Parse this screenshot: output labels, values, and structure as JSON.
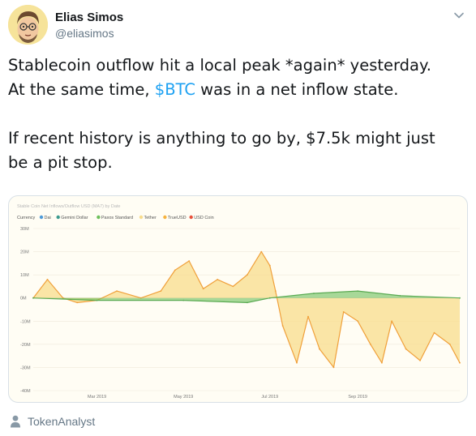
{
  "author": {
    "display_name": "Elias Simos",
    "handle": "@eliasimos"
  },
  "tweet": {
    "line1_a": "Stablecoin outflow hit a local peak *again* yesterday.",
    "line2_a": "At the same time, ",
    "line2_cashtag": "$BTC",
    "line2_b": " was in a net inflow state.",
    "line3": "If recent history is anything to go by, $7.5k might just",
    "line4": "be a pit stop."
  },
  "media_attribution": "TokenAnalyst",
  "chart_data": {
    "type": "area",
    "title": "Stable Coin Net Inflows/Outflow USD (MA7) by Date",
    "legend_title": "Currency",
    "legend_placement": "top-left",
    "grid": true,
    "ylim": [
      -40,
      30
    ],
    "y_ticks": [
      "30M",
      "20M",
      "10M",
      "0M",
      "-10M",
      "-20M",
      "-30M",
      "-40M"
    ],
    "x_ticks": [
      "Mar 2019",
      "May 2019",
      "Jul 2019",
      "Sep 2019"
    ],
    "colors": {
      "Dai": "#4e9ad8",
      "Gemini Dollar": "#3b9a8e",
      "Paxos Standard": "#6cbf5a",
      "Tether": "#f8dc8c",
      "TrueUSD": "#f6b23e",
      "USD Coin": "#e8503a"
    },
    "series": [
      {
        "name": "Tether",
        "x": [
          "2019-01-15",
          "2019-01-25",
          "2019-02-05",
          "2019-02-15",
          "2019-03-01",
          "2019-03-15",
          "2019-04-01",
          "2019-04-15",
          "2019-04-25",
          "2019-05-05",
          "2019-05-15",
          "2019-05-25",
          "2019-06-05",
          "2019-06-15",
          "2019-06-25",
          "2019-07-01",
          "2019-07-05",
          "2019-07-10",
          "2019-07-20",
          "2019-07-28",
          "2019-08-05",
          "2019-08-15",
          "2019-08-22",
          "2019-09-01",
          "2019-09-10",
          "2019-09-18",
          "2019-09-25",
          "2019-10-05",
          "2019-10-15",
          "2019-10-25",
          "2019-11-05",
          "2019-11-12"
        ],
        "values": [
          0,
          8,
          0,
          -2,
          -1,
          3,
          0,
          3,
          12,
          16,
          4,
          8,
          5,
          10,
          20,
          14,
          3,
          -12,
          -28,
          -8,
          -22,
          -30,
          -6,
          -10,
          -20,
          -28,
          -10,
          -22,
          -27,
          -15,
          -20,
          -28
        ]
      },
      {
        "name": "Paxos Standard",
        "x": [
          "2019-01-15",
          "2019-03-01",
          "2019-05-01",
          "2019-06-15",
          "2019-07-01",
          "2019-08-01",
          "2019-09-01",
          "2019-10-01",
          "2019-11-12"
        ],
        "values": [
          0,
          -1,
          -1,
          -2,
          0,
          2,
          3,
          1,
          0
        ]
      }
    ]
  }
}
